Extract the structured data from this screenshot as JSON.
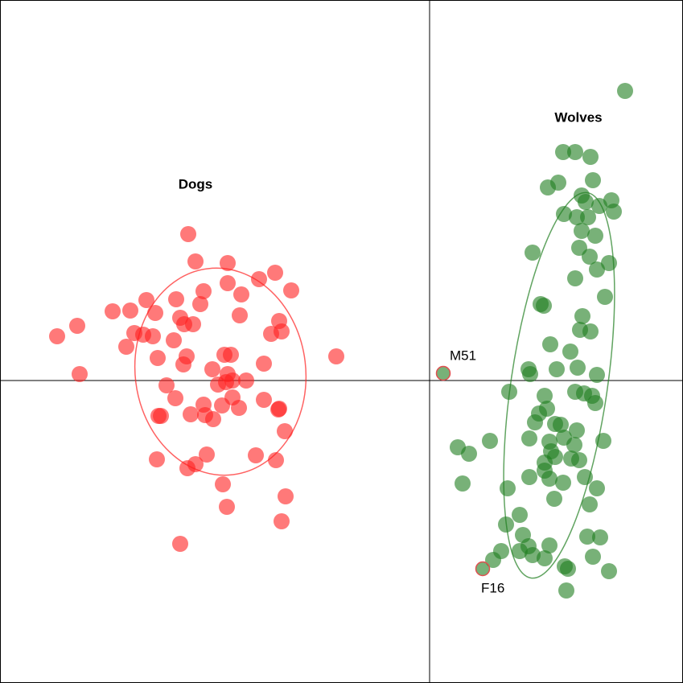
{
  "chart_data": {
    "type": "scatter",
    "xlim": [
      -533,
      314
    ],
    "ylim": [
      -375,
      472
    ],
    "alpha": 0.6,
    "series": [
      {
        "color": "#ff2020",
        "x": [
          -300,
          -291,
          -251,
          -212,
          -192,
          -172,
          -281,
          -251,
          -394,
          -372,
          -352,
          -315,
          -285,
          -234,
          -341,
          -310,
          -305,
          -294,
          -236,
          -187,
          -184,
          -197,
          -463,
          -438,
          -367,
          -356,
          -344,
          -377,
          -318,
          -116,
          -338,
          -302,
          -255,
          -247,
          -206,
          -306,
          -270,
          -251,
          -435,
          -327,
          -263,
          -253,
          -245,
          -228,
          -316,
          -281,
          -258,
          -245,
          -237,
          -206,
          -187,
          -188,
          -337,
          -334,
          -297,
          -279,
          -269,
          -180,
          -339,
          -301,
          -291,
          -277,
          -216,
          -191,
          -257,
          -179,
          -252,
          -184,
          -310
        ],
        "y": [
          182,
          148,
          146,
          126,
          134,
          112,
          111,
          121,
          86,
          87,
          100,
          101,
          95,
          107,
          84,
          78,
          70,
          70,
          81,
          74,
          61,
          58,
          55,
          68,
          59,
          57,
          55,
          42,
          50,
          30,
          28,
          30,
          32,
          32,
          21,
          20,
          14,
          8,
          8,
          -6,
          -5,
          -2,
          0,
          0,
          -22,
          -30,
          -31,
          -21,
          -34,
          -24,
          -35,
          -36,
          -44,
          -44,
          -42,
          -43,
          -48,
          -63,
          -98,
          -109,
          -104,
          -92,
          -93,
          -99,
          -129,
          -144,
          -157,
          -175,
          -203
        ],
        "ellipse": {
          "cx": -260,
          "cy": 11,
          "rx": 106,
          "ry": 129,
          "angle": 7
        }
      },
      {
        "color": "#1e7d1e",
        "x": [
          243,
          166,
          181,
          200,
          203,
          160,
          147,
          189,
          194,
          211,
          226,
          167,
          183,
          197,
          229,
          189,
          206,
          186,
          199,
          223,
          208,
          128,
          181,
          138,
          142,
          218,
          190,
          187,
          200,
          150,
          175,
          123,
          125,
          158,
          184,
          208,
          99,
          143,
          181,
          192,
          202,
          146,
          206,
          136,
          131,
          156,
          163,
          183,
          149,
          167,
          35,
          75,
          49,
          124,
          180,
          216,
          151,
          156,
          176,
          143,
          143,
          186,
          193,
          124,
          149,
          166,
          208,
          41,
          97,
          155,
          199,
          112,
          95,
          116,
          123,
          112,
          149,
          196,
          212,
          128,
          143,
          89,
          79,
          168,
          172,
          223,
          203,
          170
        ],
        "y": [
          360,
          284,
          284,
          278,
          249,
          246,
          240,
          230,
          222,
          217,
          224,
          207,
          203,
          203,
          210,
          186,
          180,
          165,
          154,
          146,
          138,
          159,
          127,
          95,
          93,
          104,
          80,
          63,
          61,
          45,
          36,
          14,
          8,
          14,
          16,
          7,
          -14,
          -19,
          -14,
          -16,
          -19,
          -35,
          -28,
          -41,
          -52,
          -54,
          -55,
          -62,
          -76,
          -71,
          -83,
          -75,
          -91,
          -72,
          -80,
          -75,
          -88,
          -95,
          -97,
          -102,
          -112,
          -99,
          -120,
          -120,
          -122,
          -127,
          -134,
          -128,
          -134,
          -147,
          -154,
          -167,
          -179,
          -192,
          -206,
          -212,
          -205,
          -194,
          -195,
          -217,
          -221,
          -212,
          -223,
          -231,
          -234,
          -237,
          -219,
          -261
        ],
        "ellipse": {
          "cx": 161,
          "cy": -6,
          "rx": 60,
          "ry": 242,
          "angle": -8.3
        }
      }
    ],
    "labeled_points": [
      {
        "label": "M51",
        "x": 17,
        "y": 9
      },
      {
        "label": "F16",
        "x": 66,
        "y": -234
      }
    ],
    "labeled_point_color": "#1e7d1e",
    "labeled_point_edgecolor": "#e05050",
    "annotations": [
      {
        "text": "Dogs",
        "x": -291,
        "y": 243
      },
      {
        "text": "Wolves",
        "x": 185,
        "y": 326
      }
    ]
  }
}
